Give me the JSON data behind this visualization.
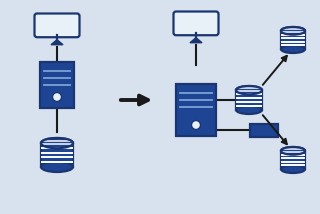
{
  "bg_color": "#d8e2ee",
  "dark_blue": "#1a3570",
  "mid_blue": "#1e4494",
  "light_blue_fill": "#e8f0f8",
  "stroke_color": "#1a3570",
  "arrow_color": "#1a1a1a",
  "line_color": "#1a1a1a",
  "figsize": [
    3.2,
    2.14
  ],
  "dpi": 100
}
